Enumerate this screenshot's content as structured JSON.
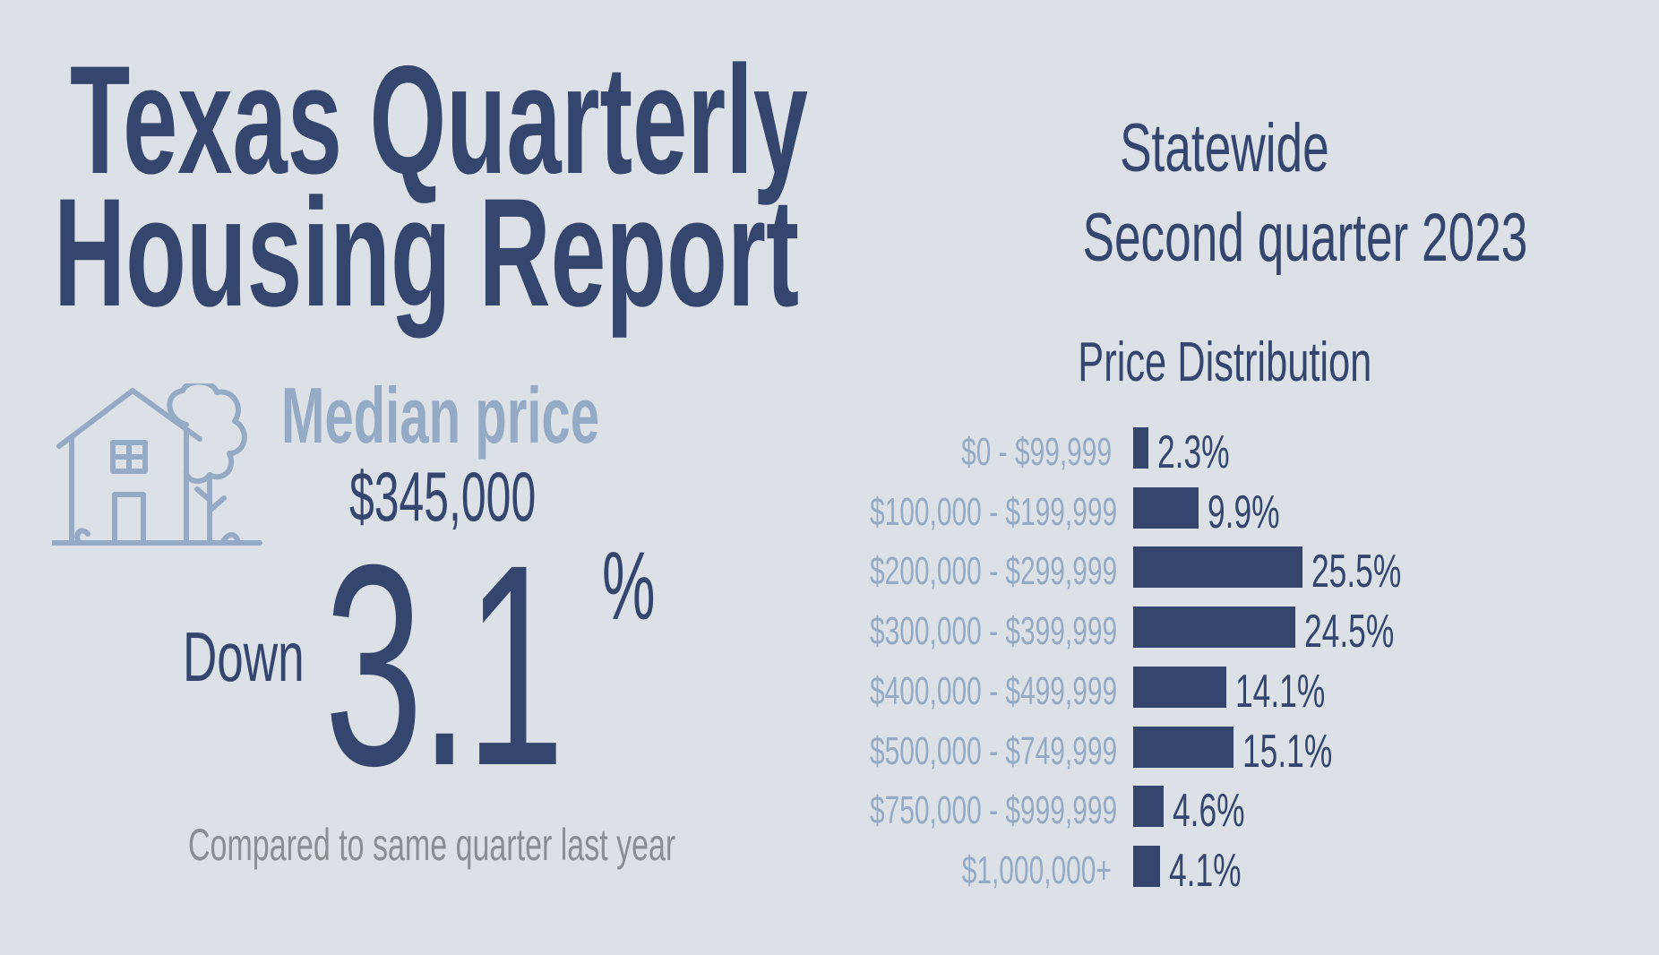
{
  "header": {
    "title_line1": "Texas Quarterly",
    "title_line2": "Housing Report",
    "region": "Statewide",
    "period": "Second quarter 2023"
  },
  "median": {
    "label": "Median price",
    "value": "$345,000",
    "direction": "Down",
    "change": "3.1",
    "change_unit": "%",
    "comparison_note": "Compared to same quarter last year"
  },
  "chart_data": {
    "type": "bar",
    "orientation": "horizontal",
    "title": "Price Distribution",
    "categories": [
      "$0 - $99,999",
      "$100,000 - $199,999",
      "$200,000 - $299,999",
      "$300,000 - $399,999",
      "$400,000 - $499,999",
      "$500,000 - $749,999",
      "$750,000 - $999,999",
      "$1,000,000+"
    ],
    "values": [
      2.3,
      9.9,
      25.5,
      24.5,
      14.1,
      15.1,
      4.6,
      4.1
    ],
    "value_labels": [
      "2.3%",
      "9.9%",
      "25.5%",
      "24.5%",
      "14.1%",
      "15.1%",
      "4.6%",
      "4.1%"
    ],
    "unit": "%",
    "grid": false,
    "legend": "none"
  },
  "colors": {
    "background": "#dce1e7",
    "primary": "#34466e",
    "muted_blue": "#95aac4",
    "gray_text": "#8a8d92"
  },
  "icons": {
    "house": "house-with-tree-icon"
  }
}
